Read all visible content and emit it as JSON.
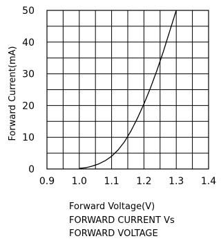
{
  "chart_data": {
    "type": "line",
    "title_lines": [
      "FORWARD CURRENT Vs",
      "FORWARD VOLTAGE"
    ],
    "xlabel": "Forward Voltage(V)",
    "ylabel": "Forward Current(mA)",
    "xlim": [
      0.9,
      1.4
    ],
    "ylim": [
      0,
      50
    ],
    "x_ticks": [
      0.9,
      1.0,
      1.1,
      1.2,
      1.3,
      1.4
    ],
    "x_tick_labels": [
      "0.9",
      "1.0",
      "1.1",
      "1.2",
      "1.3",
      "1.4"
    ],
    "y_ticks": [
      0,
      10,
      20,
      30,
      40,
      50
    ],
    "y_tick_labels": [
      "0",
      "10",
      "20",
      "30",
      "40",
      "50"
    ],
    "x_grid_step": 0.05,
    "y_grid_step": 5,
    "grid": true,
    "series": [
      {
        "x": [
          1.0,
          1.02,
          1.04,
          1.06,
          1.08,
          1.1,
          1.12,
          1.14,
          1.16,
          1.18,
          1.2,
          1.22,
          1.24,
          1.26,
          1.28,
          1.3
        ],
        "y": [
          0.2,
          0.4,
          0.9,
          1.6,
          2.6,
          4.0,
          6.0,
          8.6,
          12.0,
          16.0,
          20.5,
          25.5,
          31.0,
          37.0,
          43.5,
          50.0
        ]
      }
    ],
    "colors": {
      "line": "#000000",
      "grid": "#000000",
      "background": "#ffffff"
    }
  }
}
